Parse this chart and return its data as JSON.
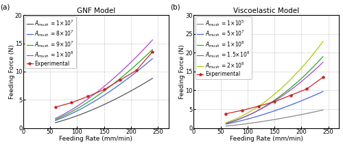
{
  "panel_a": {
    "title": "GNF Model",
    "xlabel": "Feeding Rate (mm/min)",
    "ylabel": "Feeding Force (N)",
    "xlim": [
      0,
      270
    ],
    "ylim": [
      0,
      20
    ],
    "xticks": [
      0,
      50,
      100,
      150,
      200,
      250
    ],
    "yticks": [
      0,
      5,
      10,
      15,
      20
    ],
    "lines": [
      {
        "label": "$A_{mush}$ = 1×10$^7$",
        "color": "#555555",
        "x": [
          60,
          240
        ],
        "y": [
          1.8,
          8.8
        ],
        "power": 1.6
      },
      {
        "label": "$A_{mush}$ = 8×10$^7$",
        "color": "#4466dd",
        "x": [
          60,
          240
        ],
        "y": [
          2.2,
          12.3
        ],
        "power": 1.6
      },
      {
        "label": "$A_{mush}$ = 9×10$^7$",
        "color": "#22aa22",
        "x": [
          60,
          240
        ],
        "y": [
          2.5,
          13.9
        ],
        "power": 1.6
      },
      {
        "label": "$A_{mush}$ = 1×10$^8$",
        "color": "#aa44cc",
        "x": [
          60,
          240
        ],
        "y": [
          2.8,
          15.6
        ],
        "power": 1.6
      }
    ],
    "exp_x": [
      60,
      90,
      120,
      150,
      180,
      210,
      240
    ],
    "exp_y": [
      3.7,
      4.5,
      5.6,
      6.8,
      8.5,
      10.2,
      13.5
    ],
    "exp_color": "#cc2222",
    "exp_label": "Experimental"
  },
  "panel_b": {
    "title": "Viscoelastic Model",
    "xlabel": "Feeding Rate (mm/min)",
    "ylabel": "Feeding Force (N)",
    "xlim": [
      0,
      270
    ],
    "ylim": [
      0,
      30
    ],
    "xticks": [
      0,
      50,
      100,
      150,
      200,
      250
    ],
    "yticks": [
      0,
      5,
      10,
      15,
      20,
      25,
      30
    ],
    "lines": [
      {
        "label": "$A_{mush}$ = 1×10$^5$",
        "color": "#888888",
        "x": [
          60,
          240
        ],
        "y": [
          0.9,
          4.8
        ],
        "power": 1.6
      },
      {
        "label": "$A_{mush}$ = 5×10$^7$",
        "color": "#4466dd",
        "x": [
          60,
          240
        ],
        "y": [
          2.8,
          9.7
        ],
        "power": 1.6
      },
      {
        "label": "$A_{mush}$ = 1×10$^8$",
        "color": "#22aa22",
        "x": [
          60,
          240
        ],
        "y": [
          3.5,
          19.0
        ],
        "power": 2.0
      },
      {
        "label": "$A_{mush}$ = 1.5×10$^8$",
        "color": "#aa44cc",
        "x": [
          60,
          240
        ],
        "y": [
          4.0,
          17.5
        ],
        "power": 1.9
      },
      {
        "label": "$A_{mush}$ = 2×10$^8$",
        "color": "#aacc00",
        "x": [
          60,
          240
        ],
        "y": [
          4.8,
          23.0
        ],
        "power": 2.0
      }
    ],
    "exp_x": [
      60,
      90,
      120,
      150,
      180,
      210,
      240
    ],
    "exp_y": [
      3.8,
      4.7,
      5.8,
      7.0,
      8.7,
      10.4,
      13.5
    ],
    "exp_color": "#cc2222",
    "exp_label": "Experimental"
  },
  "label_fontsize": 6.5,
  "tick_fontsize": 6,
  "legend_fontsize": 5.5,
  "title_fontsize": 7.5,
  "figure_bg": "#ffffff"
}
